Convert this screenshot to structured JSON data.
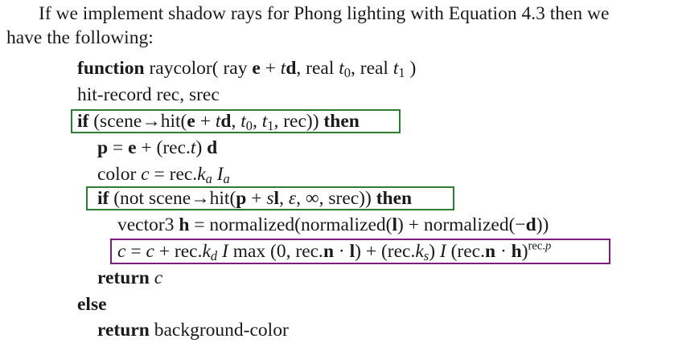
{
  "intro": {
    "line1": "If we implement shadow rays for Phong lighting with Equation 4.3 then we",
    "line2": "have the following:"
  },
  "code": {
    "kw_function": "function",
    "kw_if": "if",
    "kw_then": "then",
    "kw_return": "return",
    "kw_else": "else",
    "fn_name": "raycolor",
    "hit_record": "hit-record rec, srec",
    "return_background": "background-color"
  },
  "highlight_colors": {
    "hit_test_boxes": "#2e7d32",
    "shading_box": "#7b1f7a"
  }
}
